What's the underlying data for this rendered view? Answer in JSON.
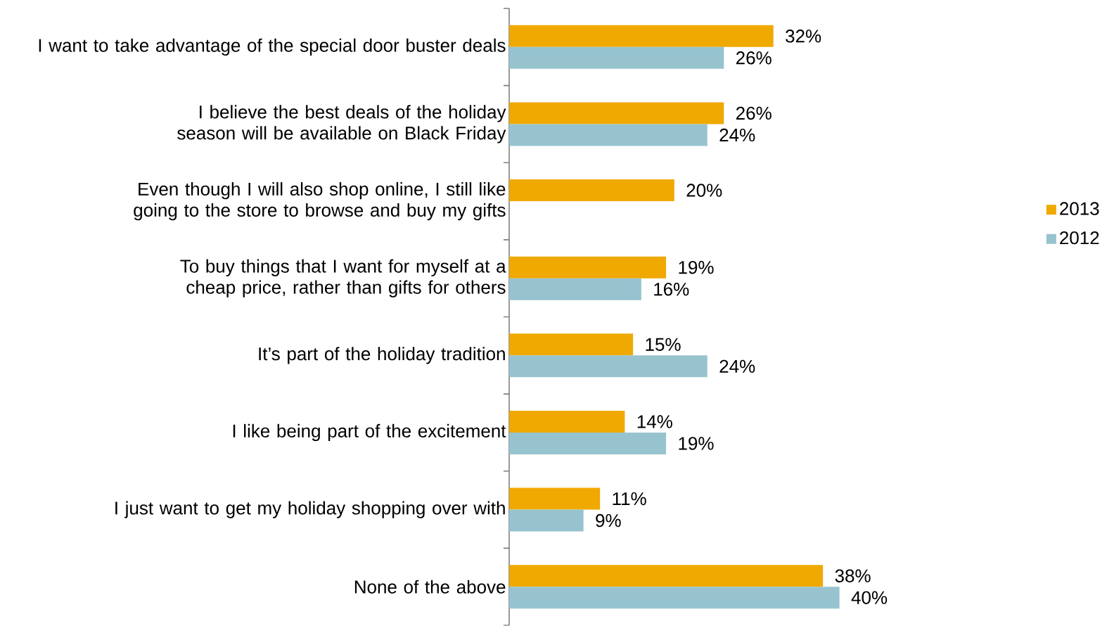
{
  "chart_data": {
    "type": "bar",
    "orientation": "horizontal",
    "legend": "right",
    "categories": [
      "I want to take advantage of the special door buster deals",
      "I believe the best deals of the holiday season will be available on Black Friday",
      "Even though I will also shop online, I still like going to the store to browse and buy my gifts",
      "To buy things that I want for myself at a cheap price, rather than gifts for others",
      "It’s part of the holiday tradition",
      "I like being part of the excitement",
      "I just want to get my holiday shopping over with",
      "None of the above"
    ],
    "series": [
      {
        "name": "2013",
        "color": "#efa900",
        "values": [
          32,
          26,
          20,
          19,
          15,
          14,
          11,
          38
        ],
        "value_labels": [
          "32%",
          "26%",
          "20%",
          "19%",
          "15%",
          "14%",
          "11%",
          "38%"
        ]
      },
      {
        "name": "2012",
        "color": "#97c3cf",
        "values": [
          26,
          24,
          null,
          16,
          24,
          19,
          9,
          40
        ],
        "value_labels": [
          "26%",
          "24%",
          null,
          "16%",
          "24%",
          "19%",
          "9%",
          "40%"
        ]
      }
    ]
  }
}
